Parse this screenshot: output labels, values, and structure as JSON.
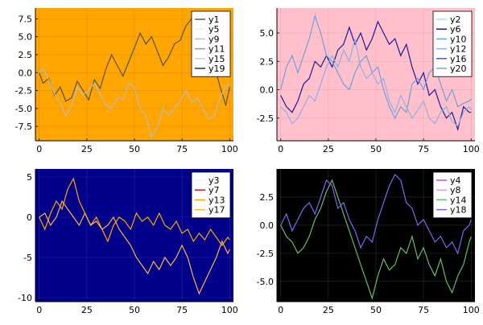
{
  "chart_data": [
    {
      "type": "line",
      "background_color": "#ffa500",
      "xlim": [
        -2,
        102
      ],
      "ylim": [
        -9.5,
        9.0
      ],
      "x_ticks": [
        0,
        25,
        50,
        75,
        100
      ],
      "y_ticks": [
        -7.5,
        -5.0,
        -2.5,
        0.0,
        2.5,
        5.0,
        7.5
      ],
      "x_tick_labels": [
        "0",
        "25",
        "50",
        "75",
        "100"
      ],
      "y_tick_labels": [
        "-7.5",
        "-5.0",
        "-2.5",
        "0.0",
        "2.5",
        "5.0",
        "7.5"
      ],
      "grid": true,
      "legend_position": "top-right",
      "series": [
        {
          "name": "y1",
          "color": "#555555",
          "visible": true,
          "x": [
            0,
            2,
            5,
            8,
            11,
            14,
            17,
            20,
            23,
            26,
            29,
            32,
            35,
            38,
            41,
            44,
            47,
            50,
            53,
            56,
            59,
            62,
            65,
            68,
            71,
            74,
            77,
            80,
            83,
            86,
            89,
            92,
            95,
            98,
            100
          ],
          "y": [
            0,
            -1.5,
            -0.8,
            -3.2,
            -2.0,
            -4.0,
            -3.5,
            -1.2,
            -2.5,
            -3.8,
            -1.0,
            -2.2,
            0.5,
            2.5,
            1.0,
            -0.5,
            1.5,
            3.5,
            5.5,
            4.0,
            5.0,
            3.0,
            1.0,
            2.2,
            4.0,
            4.5,
            6.5,
            7.5,
            6.8,
            5.0,
            2.0,
            1.0,
            -2.0,
            -4.5,
            -2.0
          ]
        },
        {
          "name": "y5",
          "color": "#eeeeee",
          "visible": false,
          "x": [
            0,
            100
          ],
          "y": [
            0,
            0
          ]
        },
        {
          "name": "y9",
          "color": "#bbbbbb",
          "visible": true,
          "x": [
            0,
            2,
            5,
            8,
            11,
            14,
            17,
            20,
            23,
            26,
            29,
            32,
            35,
            38,
            41,
            44,
            47,
            50,
            53,
            56,
            59,
            62,
            65,
            68,
            71,
            74,
            77,
            80,
            83,
            86,
            89,
            92,
            95,
            98,
            100
          ],
          "y": [
            0,
            0.5,
            -1.0,
            -3.0,
            -4.2,
            -6.0,
            -4.5,
            -2.0,
            -3.0,
            -2.5,
            -1.5,
            -3.0,
            -4.5,
            -5.0,
            -3.5,
            -3.8,
            -1.5,
            -2.0,
            -5.0,
            -6.0,
            -9.0,
            -7.5,
            -5.0,
            -6.0,
            -5.0,
            -4.0,
            -2.5,
            -4.2,
            -3.5,
            -5.0,
            -6.5,
            -6.0,
            -3.5,
            -2.0,
            -1.5
          ]
        },
        {
          "name": "y11",
          "color": "#999999",
          "visible": false,
          "x": [
            0,
            100
          ],
          "y": [
            0,
            0
          ]
        },
        {
          "name": "y15",
          "color": "#cfcfcf",
          "visible": false,
          "x": [
            0,
            100
          ],
          "y": [
            0,
            0
          ]
        },
        {
          "name": "y19",
          "color": "#333333",
          "visible": false,
          "x": [
            0,
            100
          ],
          "y": [
            0,
            0
          ]
        }
      ]
    },
    {
      "type": "line",
      "background_color": "#ffc0cb",
      "xlim": [
        -2,
        102
      ],
      "ylim": [
        -4.5,
        7.2
      ],
      "x_ticks": [
        0,
        25,
        50,
        75,
        100
      ],
      "y_ticks": [
        -2.5,
        0.0,
        2.5,
        5.0
      ],
      "x_tick_labels": [
        "0",
        "25",
        "50",
        "75",
        "100"
      ],
      "y_tick_labels": [
        "-2.5",
        "0.0",
        "2.5",
        "5.0"
      ],
      "grid": true,
      "legend_position": "top-right",
      "series": [
        {
          "name": "y2",
          "color": "#b9d6f2",
          "visible": false,
          "x": [
            0,
            100
          ],
          "y": [
            0,
            0
          ]
        },
        {
          "name": "y6",
          "color": "#1a1a9e",
          "visible": true,
          "x": [
            0,
            3,
            6,
            9,
            12,
            15,
            18,
            21,
            24,
            27,
            30,
            33,
            36,
            39,
            42,
            45,
            48,
            51,
            54,
            57,
            60,
            63,
            66,
            69,
            72,
            75,
            78,
            81,
            84,
            87,
            90,
            93,
            96,
            99,
            100
          ],
          "y": [
            -0.5,
            -1.5,
            -2.0,
            -1.0,
            0.5,
            1.0,
            2.5,
            2.0,
            3.0,
            2.0,
            3.5,
            4.0,
            5.5,
            4.0,
            5.0,
            3.5,
            4.5,
            6.0,
            5.0,
            4.0,
            4.5,
            3.0,
            4.0,
            2.0,
            0.5,
            1.5,
            -0.5,
            0.0,
            -1.5,
            -2.5,
            -2.0,
            -3.5,
            -1.5,
            -2.0,
            -2.0
          ]
        },
        {
          "name": "y10",
          "color": "#6f9fd8",
          "visible": true,
          "x": [
            0,
            3,
            6,
            9,
            12,
            15,
            18,
            21,
            24,
            27,
            30,
            33,
            36,
            39,
            42,
            45,
            48,
            51,
            54,
            57,
            60,
            63,
            66,
            69,
            72,
            75,
            78,
            81,
            84,
            87,
            90,
            93,
            96,
            99,
            100
          ],
          "y": [
            0.0,
            2.0,
            3.0,
            1.5,
            3.0,
            4.5,
            6.5,
            5.0,
            3.0,
            2.5,
            1.5,
            0.5,
            0.0,
            1.5,
            2.5,
            3.0,
            1.5,
            2.0,
            0.0,
            -1.5,
            -2.5,
            -1.5,
            -2.0,
            0.5,
            1.0,
            0.0,
            1.5,
            2.0,
            0.5,
            -1.0,
            0.0,
            -1.5,
            -1.2,
            -1.0,
            -0.8
          ]
        },
        {
          "name": "y12",
          "color": "#8fb0e0",
          "visible": true,
          "x": [
            0,
            3,
            6,
            9,
            12,
            15,
            18,
            21,
            24,
            27,
            30,
            33,
            36,
            39,
            42,
            45,
            48,
            51,
            54,
            57,
            60,
            63,
            66,
            69,
            72,
            75,
            78,
            81,
            84,
            87,
            90,
            93,
            96,
            99,
            100
          ],
          "y": [
            -1.5,
            -2.0,
            -3.0,
            -2.5,
            -1.5,
            -0.5,
            -1.0,
            0.5,
            2.0,
            3.0,
            2.0,
            3.5,
            2.5,
            4.5,
            2.0,
            1.0,
            1.5,
            0.5,
            1.0,
            -1.0,
            -2.0,
            -0.5,
            -1.5,
            -2.5,
            -1.8,
            -1.0,
            -2.5,
            -3.0,
            -2.0,
            -1.5,
            -2.8,
            -3.2,
            -2.0,
            -1.5,
            -1.8
          ]
        },
        {
          "name": "y16",
          "color": "#4a5fb5",
          "visible": false,
          "x": [
            0,
            100
          ],
          "y": [
            0,
            0
          ]
        },
        {
          "name": "y20",
          "color": "#7ea6e0",
          "visible": false,
          "x": [
            0,
            100
          ],
          "y": [
            0,
            0
          ]
        }
      ]
    },
    {
      "type": "line",
      "background_color": "#00008b",
      "xlim": [
        -2,
        102
      ],
      "ylim": [
        -10.5,
        6.0
      ],
      "x_ticks": [
        0,
        25,
        50,
        75,
        100
      ],
      "y_ticks": [
        -10,
        -5,
        0,
        5
      ],
      "x_tick_labels": [
        "0",
        "25",
        "50",
        "75",
        "100"
      ],
      "y_tick_labels": [
        "-10",
        "-5",
        "0",
        "5"
      ],
      "grid": true,
      "legend_position": "top-right",
      "series": [
        {
          "name": "y3",
          "color": "#f0f0ff",
          "visible": false,
          "x": [
            0,
            100
          ],
          "y": [
            0,
            0
          ]
        },
        {
          "name": "y7",
          "color": "#b22222",
          "visible": false,
          "x": [
            0,
            100
          ],
          "y": [
            0,
            0
          ]
        },
        {
          "name": "y13",
          "color": "#ffa500",
          "visible": true,
          "x": [
            0,
            3,
            6,
            9,
            12,
            15,
            18,
            21,
            24,
            27,
            30,
            33,
            36,
            39,
            42,
            45,
            48,
            51,
            54,
            57,
            60,
            63,
            66,
            69,
            72,
            75,
            78,
            81,
            84,
            87,
            90,
            93,
            96,
            99,
            100
          ],
          "y": [
            0,
            -1.5,
            0.5,
            2.0,
            1.0,
            3.5,
            4.8,
            2.0,
            0.5,
            -1.0,
            0.0,
            -1.5,
            -3.0,
            -1.0,
            0.0,
            -0.5,
            -1.5,
            0.5,
            -0.5,
            0.0,
            -1.0,
            0.5,
            -1.0,
            -1.5,
            -0.5,
            -2.0,
            -1.5,
            -3.0,
            -2.0,
            -2.8,
            -1.5,
            -2.5,
            -3.5,
            -2.5,
            -2.8
          ]
        },
        {
          "name": "y17",
          "color": "#ffb347",
          "visible": true,
          "x": [
            0,
            3,
            6,
            9,
            12,
            15,
            18,
            21,
            24,
            27,
            30,
            33,
            36,
            39,
            42,
            45,
            48,
            51,
            54,
            57,
            60,
            63,
            66,
            69,
            72,
            75,
            78,
            81,
            84,
            87,
            90,
            93,
            96,
            99,
            100
          ],
          "y": [
            0,
            0.5,
            -1.0,
            0.0,
            2.0,
            1.0,
            0.0,
            -1.0,
            0.5,
            -1.0,
            -0.5,
            -1.5,
            -1.0,
            0.0,
            -1.5,
            -2.5,
            -3.5,
            -5.0,
            -6.0,
            -7.0,
            -5.5,
            -6.5,
            -5.0,
            -6.0,
            -5.0,
            -3.5,
            -5.0,
            -7.5,
            -9.5,
            -8.0,
            -6.5,
            -5.0,
            -3.0,
            -4.5,
            -4.0
          ]
        }
      ]
    },
    {
      "type": "line",
      "background_color": "#000000",
      "xlim": [
        -2,
        102
      ],
      "ylim": [
        -6.8,
        5.0
      ],
      "x_ticks": [
        0,
        25,
        50,
        75,
        100
      ],
      "y_ticks": [
        -5.0,
        -2.5,
        0.0,
        2.5
      ],
      "x_tick_labels": [
        "0",
        "25",
        "50",
        "75",
        "100"
      ],
      "y_tick_labels": [
        "-5.0",
        "-2.5",
        "0.0",
        "2.5"
      ],
      "grid": true,
      "legend_position": "top-right",
      "series": [
        {
          "name": "y4",
          "color": "#ba55d3",
          "visible": false,
          "x": [
            0,
            100
          ],
          "y": [
            0,
            0
          ]
        },
        {
          "name": "y8",
          "color": "#dda0dd",
          "visible": false,
          "x": [
            0,
            100
          ],
          "y": [
            0,
            0
          ]
        },
        {
          "name": "y14",
          "color": "#66bb6a",
          "visible": true,
          "x": [
            0,
            3,
            6,
            9,
            12,
            15,
            18,
            21,
            24,
            27,
            30,
            33,
            36,
            39,
            42,
            45,
            48,
            51,
            54,
            57,
            60,
            63,
            66,
            69,
            72,
            75,
            78,
            81,
            84,
            87,
            90,
            93,
            96,
            99,
            100
          ],
          "y": [
            0,
            -1.0,
            -1.5,
            -2.5,
            -2.0,
            -1.0,
            0.5,
            1.5,
            3.0,
            4.0,
            2.5,
            1.0,
            -0.5,
            -2.0,
            -3.5,
            -5.0,
            -6.5,
            -4.5,
            -3.0,
            -4.0,
            -3.5,
            -2.0,
            -2.5,
            -1.0,
            -3.0,
            -2.0,
            -3.5,
            -4.5,
            -3.0,
            -5.0,
            -6.0,
            -4.5,
            -3.5,
            -1.5,
            -1.0
          ]
        },
        {
          "name": "y18",
          "color": "#7b68ee",
          "visible": true,
          "x": [
            0,
            3,
            6,
            9,
            12,
            15,
            18,
            21,
            24,
            27,
            30,
            33,
            36,
            39,
            42,
            45,
            48,
            51,
            54,
            57,
            60,
            63,
            66,
            69,
            72,
            75,
            78,
            81,
            84,
            87,
            90,
            93,
            96,
            99,
            100
          ],
          "y": [
            0,
            1.0,
            -0.5,
            0.5,
            1.5,
            2.0,
            1.0,
            2.5,
            4.0,
            3.5,
            1.5,
            2.0,
            0.5,
            -0.5,
            -2.0,
            -1.0,
            -1.5,
            0.5,
            2.0,
            3.5,
            4.5,
            4.0,
            2.0,
            1.5,
            0.0,
            0.5,
            -0.5,
            -1.5,
            -1.0,
            -2.0,
            -1.5,
            -2.5,
            -0.5,
            0.0,
            0.5
          ]
        }
      ]
    }
  ]
}
